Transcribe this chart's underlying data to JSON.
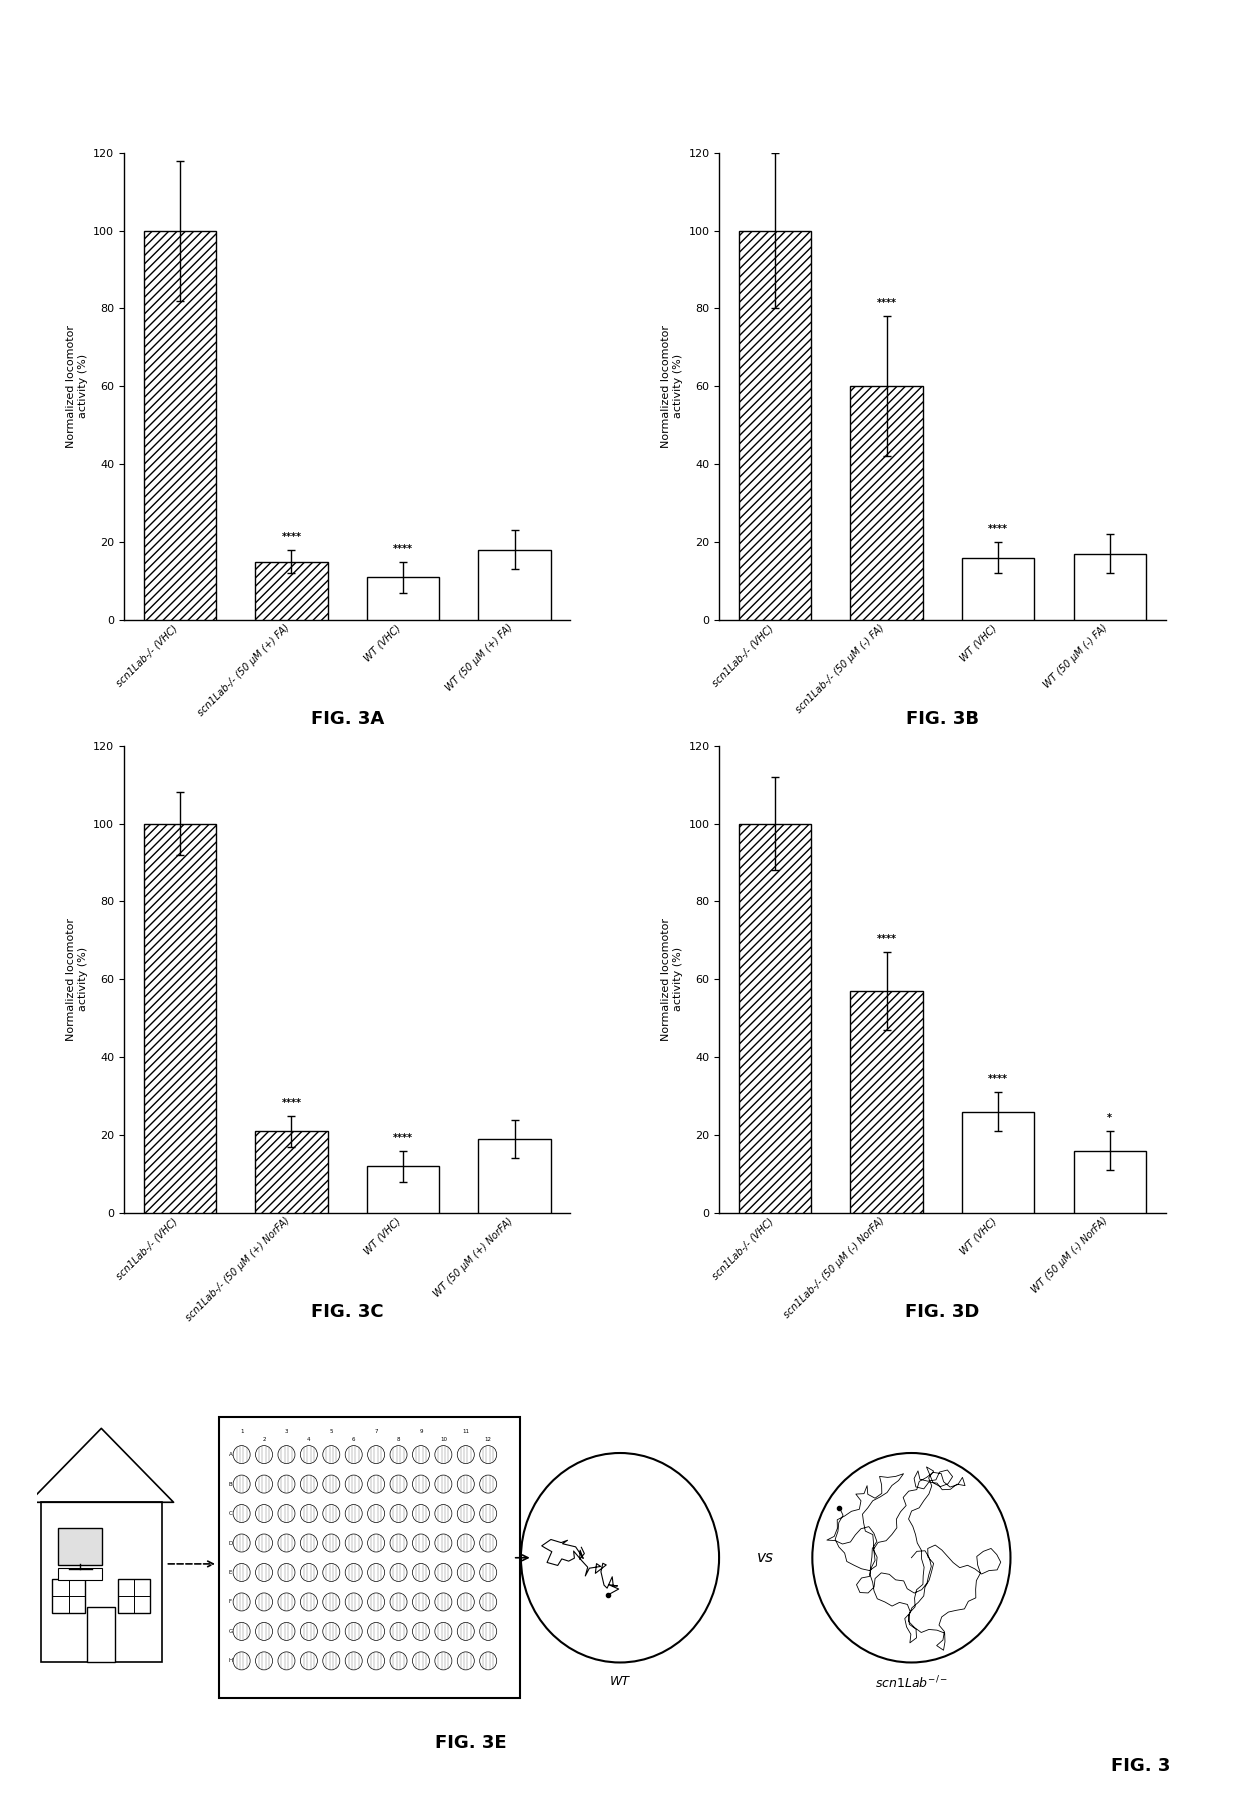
{
  "fig3A": {
    "title": "FIG. 3A",
    "ylabel": "Normalized locomotor\nactivity (%)",
    "ylim": [
      0,
      120
    ],
    "yticks": [
      0,
      20,
      40,
      60,
      80,
      100,
      120
    ],
    "bars": [
      100,
      15,
      11,
      18
    ],
    "errors": [
      18,
      3,
      4,
      5
    ],
    "hatched": [
      true,
      true,
      false,
      false
    ],
    "significance": [
      "",
      "****",
      "****",
      ""
    ],
    "xlabels": [
      "scn1Lab-/- (VHC)",
      "scn1Lab-/- (50 μM (+) FA)",
      "WT (VHC)",
      "WT (50 μM (+) FA)"
    ]
  },
  "fig3B": {
    "title": "FIG. 3B",
    "ylabel": "Normalized locomotor\nactivity (%)",
    "ylim": [
      0,
      120
    ],
    "yticks": [
      0,
      20,
      40,
      60,
      80,
      100,
      120
    ],
    "bars": [
      100,
      60,
      16,
      17
    ],
    "errors": [
      20,
      18,
      4,
      5
    ],
    "hatched": [
      true,
      true,
      false,
      false
    ],
    "significance": [
      "",
      "****",
      "****",
      ""
    ],
    "xlabels": [
      "scn1Lab-/- (VHC)",
      "scn1Lab-/- (50 μM (-) FA)",
      "WT (VHC)",
      "WT (50 μM (-) FA)"
    ]
  },
  "fig3C": {
    "title": "FIG. 3C",
    "ylabel": "Normalized locomotor\nactivity (%)",
    "ylim": [
      0,
      120
    ],
    "yticks": [
      0,
      20,
      40,
      60,
      80,
      100,
      120
    ],
    "bars": [
      100,
      21,
      12,
      19
    ],
    "errors": [
      8,
      4,
      4,
      5
    ],
    "hatched": [
      true,
      true,
      false,
      false
    ],
    "significance": [
      "",
      "****",
      "****",
      ""
    ],
    "xlabels": [
      "scn1Lab-/- (VHC)",
      "scn1Lab-/- (50 μM (+) NorFA)",
      "WT (VHC)",
      "WT (50 μM (+) NorFA)"
    ]
  },
  "fig3D": {
    "title": "FIG. 3D",
    "ylabel": "Normalized locomotor\nactivity (%)",
    "ylim": [
      0,
      120
    ],
    "yticks": [
      0,
      20,
      40,
      60,
      80,
      100,
      120
    ],
    "bars": [
      100,
      57,
      26,
      16
    ],
    "errors": [
      12,
      10,
      5,
      5
    ],
    "hatched": [
      true,
      true,
      false,
      false
    ],
    "significance": [
      "",
      "****",
      "****",
      "*"
    ],
    "xlabels": [
      "scn1Lab-/- (VHC)",
      "scn1Lab-/- (50 μM (-) NorFA)",
      "WT (VHC)",
      "WT (50 μM (-) NorFA)"
    ]
  },
  "fig3E_title": "FIG. 3E",
  "fig3_title": "FIG. 3",
  "bar_edge_color": "#000000",
  "bar_face_color_plain": "#ffffff",
  "background_color": "#ffffff",
  "text_color": "#000000"
}
